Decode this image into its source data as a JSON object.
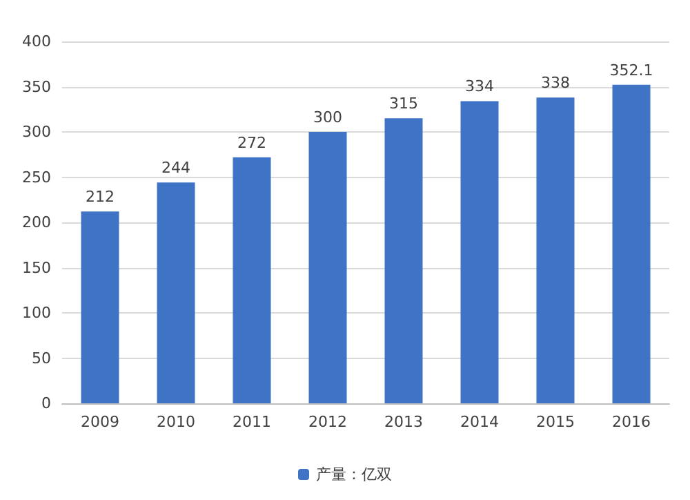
{
  "chart_data": {
    "type": "bar",
    "categories": [
      "2009",
      "2010",
      "2011",
      "2012",
      "2013",
      "2014",
      "2015",
      "2016"
    ],
    "series": [
      {
        "name": "产量：亿双",
        "color": "#3f73c6",
        "values": [
          212,
          244,
          272,
          300,
          315,
          334,
          338,
          352.1
        ]
      }
    ],
    "ylim": [
      0,
      400
    ],
    "yticks": [
      0,
      50,
      100,
      150,
      200,
      250,
      300,
      350,
      400
    ],
    "grid": "y",
    "legend": "bottom",
    "data_labels": true
  }
}
